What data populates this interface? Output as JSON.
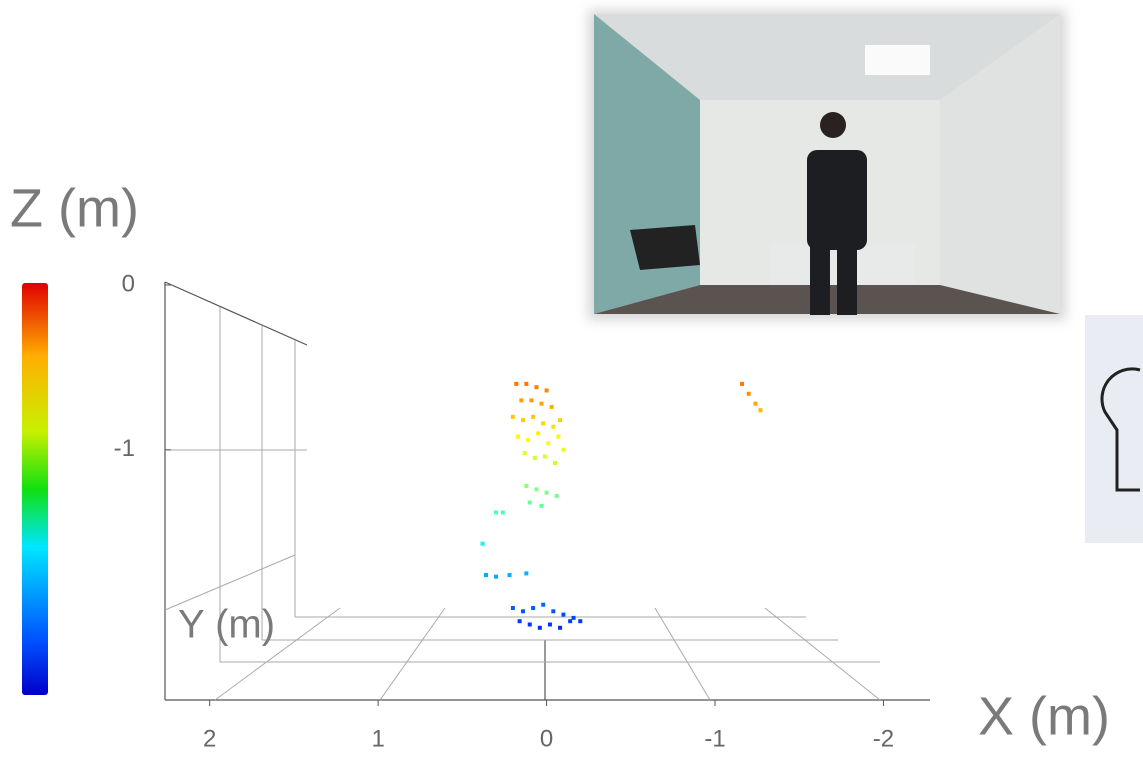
{
  "chart_data": {
    "type": "scatter3d",
    "xlabel": "X (m)",
    "ylabel": "Y (m)",
    "zlabel": "Z (m)",
    "xlim": [
      2.2,
      -2.3
    ],
    "xticks": [
      2,
      1,
      0,
      -1,
      -2
    ],
    "zlim": [
      -2.5,
      0
    ],
    "zticks": [
      0,
      -1
    ],
    "colormap": "jet",
    "x": [
      0.18,
      0.12,
      0.06,
      0.0,
      0.15,
      0.09,
      0.03,
      -0.03,
      0.2,
      0.14,
      0.08,
      0.02,
      -0.04,
      -0.08,
      0.17,
      0.11,
      0.05,
      -0.01,
      -0.07,
      0.13,
      0.07,
      0.01,
      -0.05,
      -0.1,
      0.12,
      0.06,
      0.0,
      -0.06,
      0.1,
      0.03,
      0.3,
      0.26,
      0.38,
      0.36,
      0.36,
      0.3,
      0.22,
      0.12,
      0.2,
      0.14,
      0.08,
      0.02,
      -0.04,
      -0.1,
      -0.16,
      -0.2,
      0.16,
      0.1,
      0.04,
      -0.02,
      -0.08,
      -0.14,
      -1.16,
      -1.2,
      -1.24,
      -1.27
    ],
    "z": [
      -0.6,
      -0.6,
      -0.62,
      -0.64,
      -0.7,
      -0.7,
      -0.72,
      -0.74,
      -0.8,
      -0.82,
      -0.8,
      -0.84,
      -0.86,
      -0.82,
      -0.92,
      -0.94,
      -0.9,
      -0.96,
      -0.92,
      -1.02,
      -1.05,
      -1.04,
      -1.08,
      -1.0,
      -1.22,
      -1.24,
      -1.26,
      -1.28,
      -1.32,
      -1.34,
      -1.38,
      -1.38,
      -1.57,
      -1.76,
      -1.76,
      -1.77,
      -1.76,
      -1.75,
      -1.96,
      -1.98,
      -1.96,
      -1.94,
      -1.98,
      -2.0,
      -2.02,
      -2.04,
      -2.04,
      -2.06,
      -2.08,
      -2.06,
      -2.08,
      -2.04,
      -0.6,
      -0.66,
      -0.72,
      -0.76
    ]
  }
}
